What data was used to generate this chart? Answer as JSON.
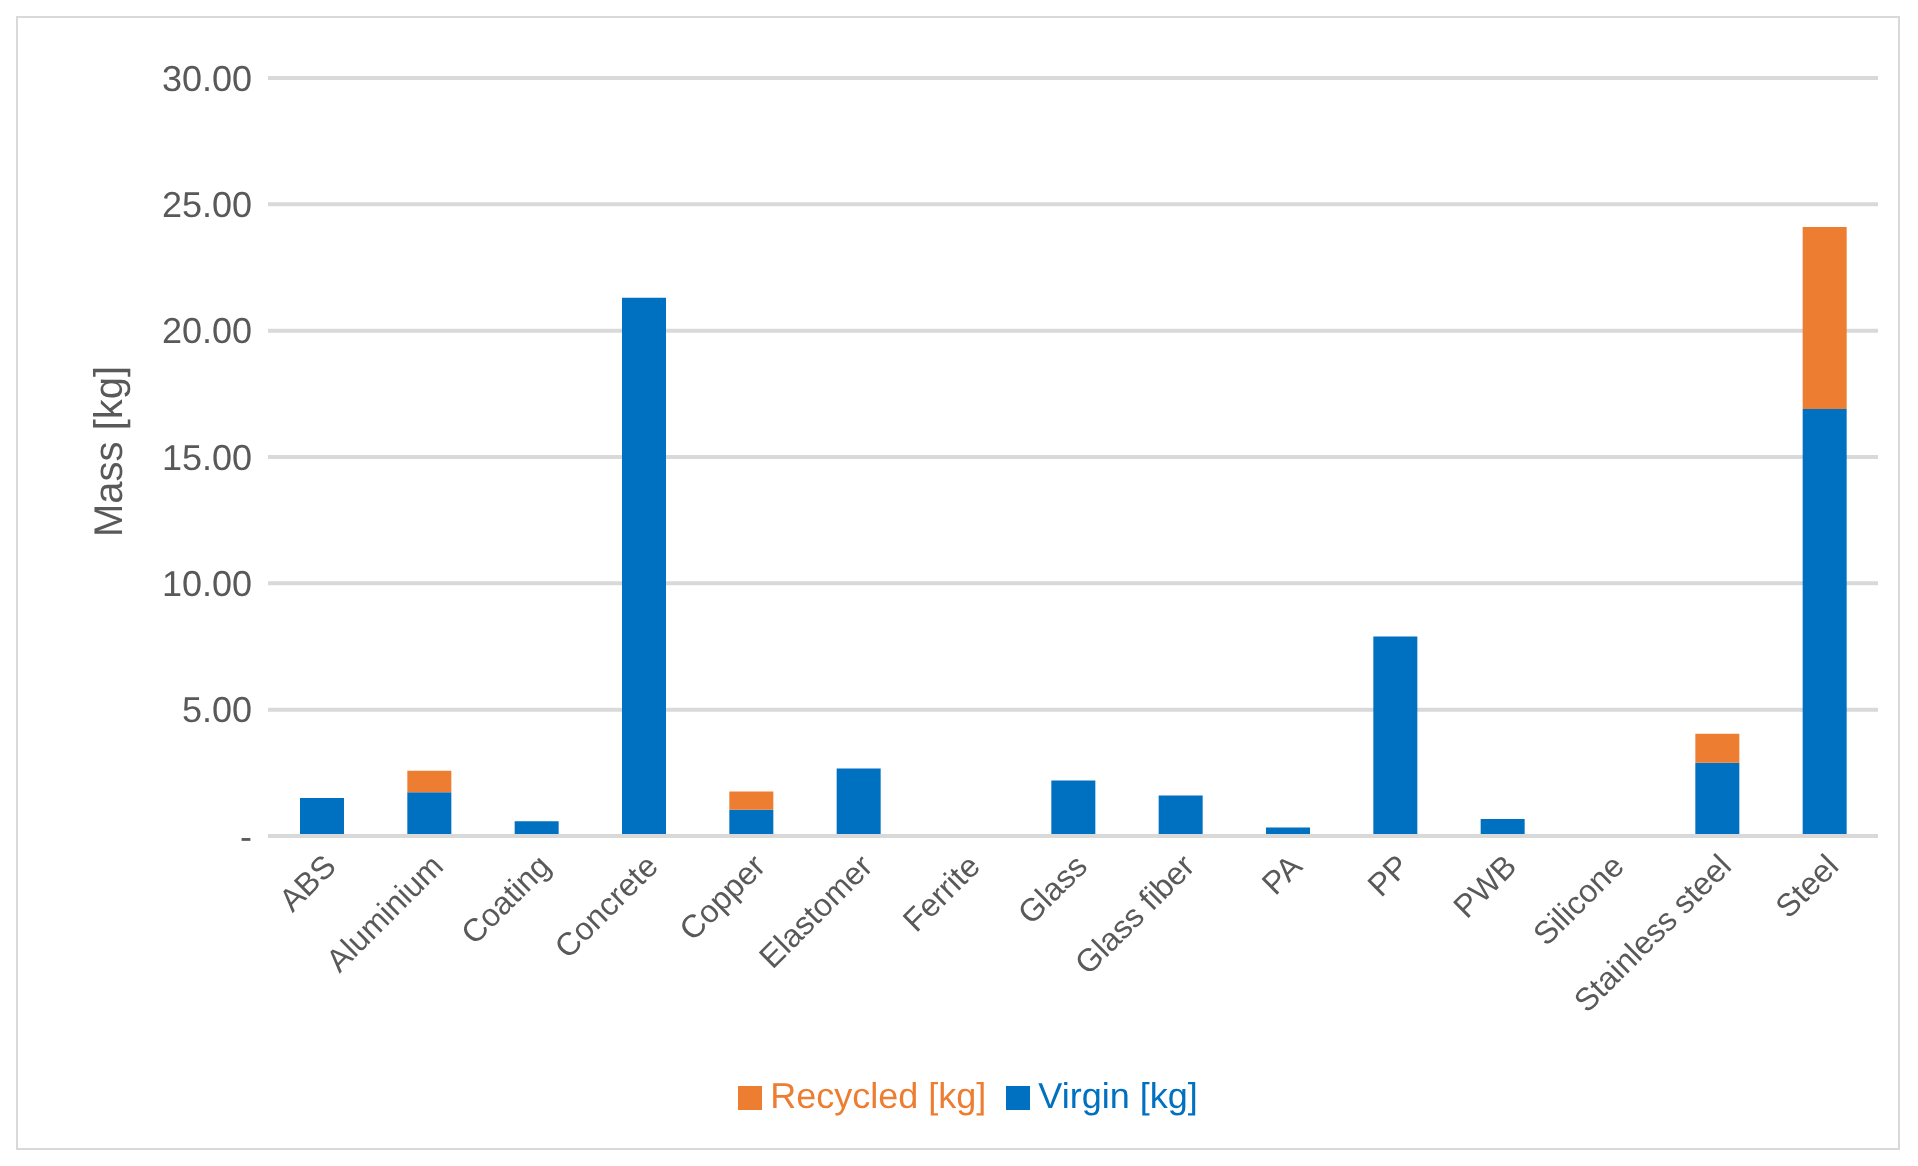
{
  "chart_data": {
    "type": "bar",
    "ylabel": "Mass [kg]",
    "stacked": true,
    "categories": [
      "ABS",
      "Aluminium",
      "Coating",
      "Concrete",
      "Copper",
      "Elastomer",
      "Ferrite",
      "Glass",
      "Glass fiber",
      "PA",
      "PP",
      "PWB",
      "Silicone",
      "Stainless steel",
      "Steel"
    ],
    "series": [
      {
        "name": "Virgin [kg]",
        "color": "#0070c0",
        "values": [
          1.5,
          1.73,
          0.58,
          21.3,
          1.04,
          2.67,
          0,
          2.2,
          1.6,
          0.34,
          7.9,
          0.67,
          0,
          2.9,
          16.9
        ]
      },
      {
        "name": "Recycled [kg]",
        "color": "#ed7d31",
        "values": [
          0,
          0.85,
          0,
          0,
          0.72,
          0,
          0,
          0,
          0,
          0,
          0,
          0,
          0,
          1.15,
          7.2
        ]
      }
    ],
    "ylim": [
      0,
      30
    ],
    "yticks": [
      {
        "value": 0,
        "label": "-"
      },
      {
        "value": 5,
        "label": "5.00"
      },
      {
        "value": 10,
        "label": "10.00"
      },
      {
        "value": 15,
        "label": "15.00"
      },
      {
        "value": 20,
        "label": "20.00"
      },
      {
        "value": 25,
        "label": "25.00"
      },
      {
        "value": 30,
        "label": "30.00"
      }
    ],
    "grid": "y",
    "legend": "bottom"
  }
}
